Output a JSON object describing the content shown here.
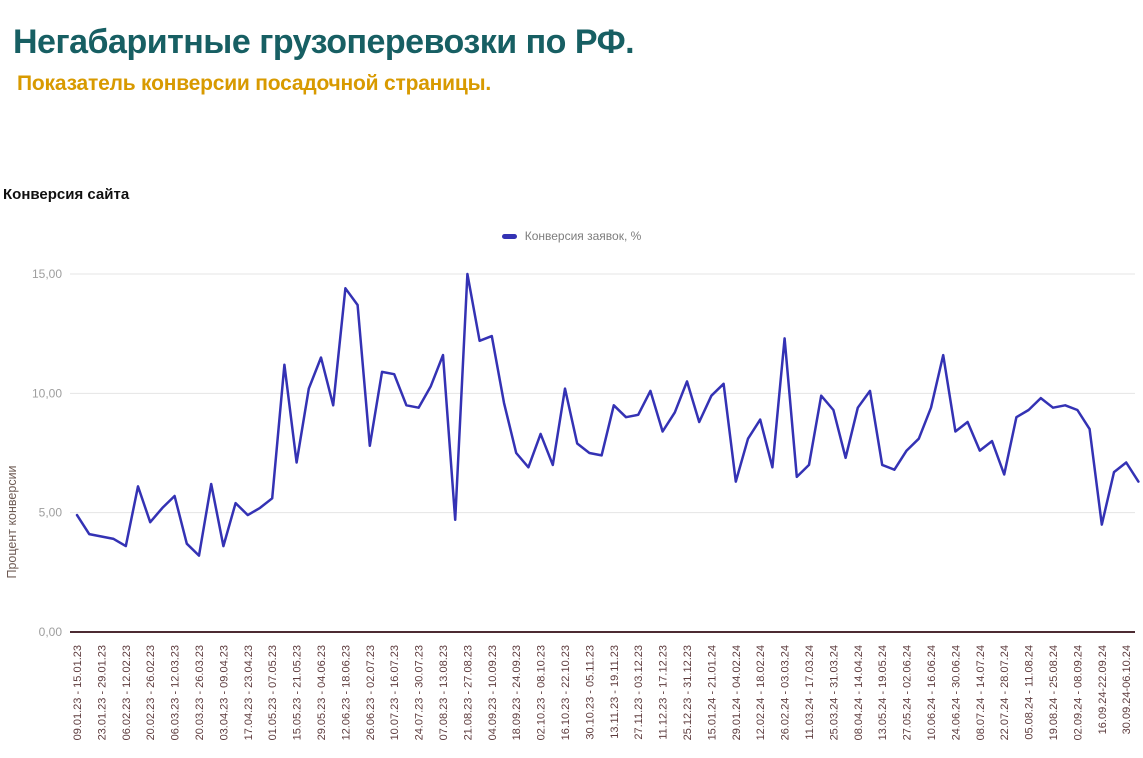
{
  "header": {
    "title": "Негабаритные грузоперевозки по РФ.",
    "subtitle": "Показатель конверсии посадочной страницы."
  },
  "legend": {
    "label": "Конверсия заявок, %"
  },
  "colors": {
    "title": "#175f63",
    "subtitle": "#d89a00",
    "series": "#3432b4",
    "grid": "#e4e4e4",
    "axis_line": "#4c2b32",
    "x_tick_label": "#5d3b3d",
    "y_tick_label": "#9e9e9e",
    "y_axis_title": "#6e5b54",
    "legend_text": "#7d7d7d",
    "chart_title_text": "#0f0f0f"
  },
  "chart_data": {
    "type": "line",
    "title": "Конверсия сайта",
    "series_name": "Конверсия заявок, %",
    "xlabel": "",
    "ylabel": "Процент конверсии",
    "ylim": [
      0,
      15
    ],
    "grid": true,
    "legend_position": "top-center",
    "yticks": [
      {
        "label": "0,00",
        "value": 0
      },
      {
        "label": "5,00",
        "value": 5
      },
      {
        "label": "10,00",
        "value": 10
      },
      {
        "label": "15,00",
        "value": 15
      }
    ],
    "x_labels_every": 2,
    "x_labels": [
      "09.01.23 - 15.01.23",
      "23.01.23 - 29.01.23",
      "06.02.23 - 12.02.23",
      "20.02.23 - 26.02.23",
      "06.03.23 - 12.03.23",
      "20.03.23 - 26.03.23",
      "03.04.23 - 09.04.23",
      "17.04.23 - 23.04.23",
      "01.05.23 - 07.05.23",
      "15.05.23 - 21.05.23",
      "29.05.23 - 04.06.23",
      "12.06.23 - 18.06.23",
      "26.06.23 - 02.07.23",
      "10.07.23 - 16.07.23",
      "24.07.23 - 30.07.23",
      "07.08.23 - 13.08.23",
      "21.08.23 - 27.08.23",
      "04.09.23 - 10.09.23",
      "18.09.23 - 24.09.23",
      "02.10.23 - 08.10.23",
      "16.10.23 - 22.10.23",
      "30.10.23 - 05.11.23",
      "13.11.23 - 19.11.23",
      "27.11.23 - 03.12.23",
      "11.12.23 - 17.12.23",
      "25.12.23 - 31.12.23",
      "15.01.24 - 21.01.24",
      "29.01.24 - 04.02.24",
      "12.02.24 - 18.02.24",
      "26.02.24 - 03.03.24",
      "11.03.24 - 17.03.24",
      "25.03.24 - 31.03.24",
      "08.04.24 - 14.04.24",
      "13.05.24 - 19.05.24",
      "27.05.24 - 02.06.24",
      "10.06.24 - 16.06.24",
      "24.06.24 - 30.06.24",
      "08.07.24 - 14.07.24",
      "22.07.24 - 28.07.24",
      "05.08.24 - 11.08.24",
      "19.08.24 - 25.08.24",
      "02.09.24 - 08.09.24",
      "16.09.24-22.09.24",
      "30.09.24-06.10.24"
    ],
    "values": [
      4.9,
      4.1,
      4.0,
      3.9,
      3.6,
      6.1,
      4.6,
      5.2,
      5.7,
      3.7,
      3.2,
      6.2,
      3.6,
      5.4,
      4.9,
      5.2,
      5.6,
      11.2,
      7.1,
      10.2,
      11.5,
      9.5,
      14.4,
      13.7,
      7.8,
      10.9,
      10.8,
      9.5,
      9.4,
      10.3,
      11.6,
      4.7,
      15.0,
      12.2,
      12.4,
      9.6,
      7.5,
      6.9,
      8.3,
      7.0,
      10.2,
      7.9,
      7.5,
      7.4,
      9.5,
      9.0,
      9.1,
      10.1,
      8.4,
      9.2,
      10.5,
      8.8,
      9.9,
      10.4,
      6.3,
      8.1,
      8.9,
      6.9,
      12.3,
      6.5,
      7.0,
      9.9,
      9.3,
      7.3,
      9.4,
      10.1,
      7.0,
      6.8,
      7.6,
      8.1,
      9.4,
      11.6,
      8.4,
      8.8,
      7.6,
      8.0,
      6.6,
      9.0,
      9.3,
      9.8,
      9.4,
      9.5,
      9.3,
      8.5,
      4.5,
      6.7,
      7.1,
      6.3
    ]
  }
}
